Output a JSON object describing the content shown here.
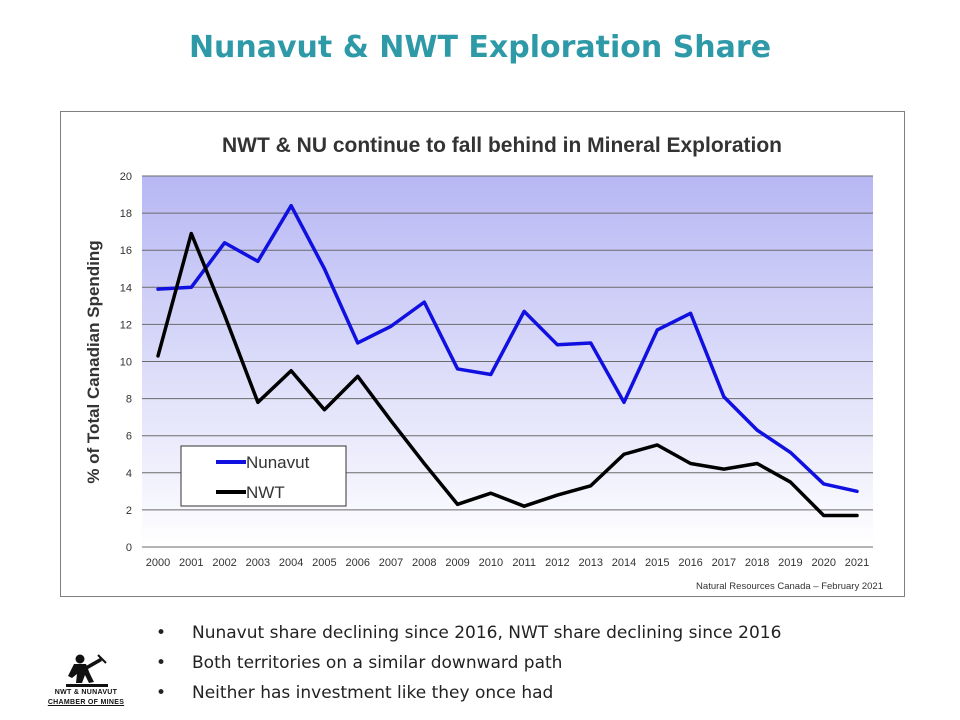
{
  "slide": {
    "title": "Nunavut & NWT Exploration Share",
    "bullets": [
      "Nunavut share declining since 2016, NWT share declining since 2016",
      "Both territories on a similar downward path",
      "Neither has investment like they once had"
    ],
    "bullet_glyph": "•",
    "logo": {
      "line1": "NWT & NUNAVUT",
      "line2": "CHAMBER OF MINES"
    }
  },
  "chart_data": {
    "type": "line",
    "title": "NWT & NU continue to fall behind in Mineral Exploration",
    "ylabel": "% of Total Canadian Spending",
    "xlabel": "",
    "source": "Natural Resources Canada – February 2021",
    "categories": [
      "2000",
      "2001",
      "2002",
      "2003",
      "2004",
      "2005",
      "2006",
      "2007",
      "2008",
      "2009",
      "2010",
      "2011",
      "2012",
      "2013",
      "2014",
      "2015",
      "2016",
      "2017",
      "2018",
      "2019",
      "2020",
      "2021"
    ],
    "ylim": [
      0,
      20
    ],
    "yticks": [
      "0",
      "2",
      "4",
      "6",
      "8",
      "10",
      "12",
      "14",
      "16",
      "18",
      "20"
    ],
    "grid": true,
    "legend_position": "bottom-left",
    "series": [
      {
        "name": "Nunavut",
        "color": "#1010e0",
        "values": [
          13.9,
          14.0,
          16.4,
          15.4,
          18.4,
          15.0,
          11.0,
          11.9,
          13.2,
          9.6,
          9.3,
          12.7,
          10.9,
          11.0,
          7.8,
          11.7,
          12.6,
          8.1,
          6.3,
          5.1,
          3.4,
          3.0
        ]
      },
      {
        "name": "NWT",
        "color": "#000000",
        "values": [
          10.3,
          16.9,
          12.5,
          7.8,
          9.5,
          7.4,
          9.2,
          6.8,
          4.5,
          2.3,
          2.9,
          2.2,
          2.8,
          3.3,
          5.0,
          5.5,
          4.5,
          4.2,
          4.5,
          3.5,
          1.7,
          1.7
        ]
      }
    ]
  }
}
